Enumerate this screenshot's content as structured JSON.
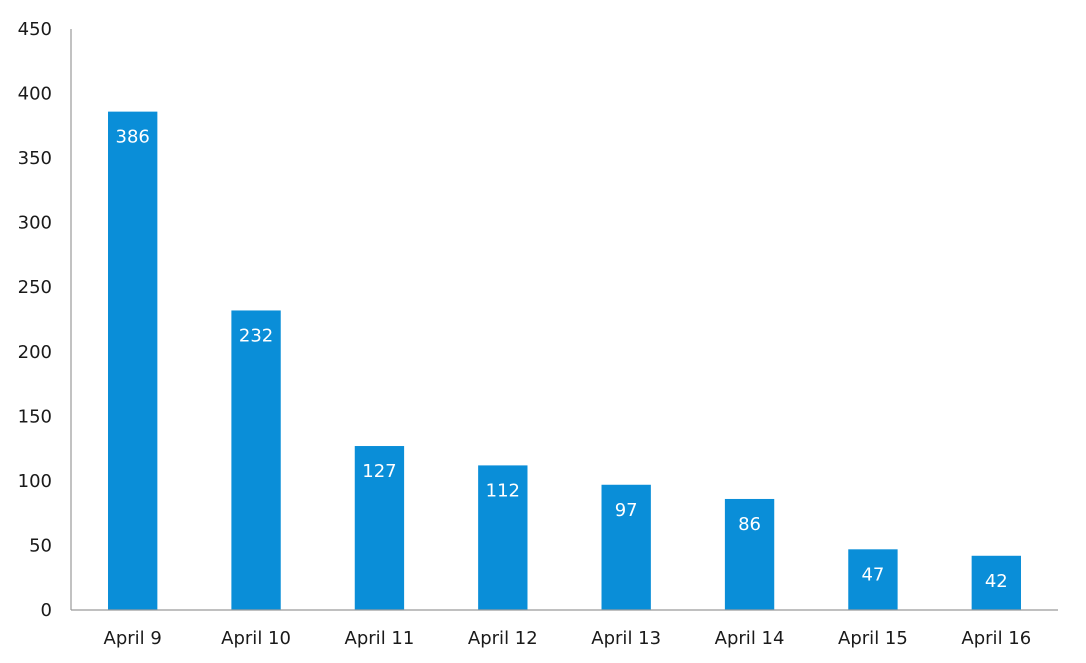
{
  "chart_data": {
    "type": "bar",
    "categories": [
      "April 9",
      "April 10",
      "April 11",
      "April 12",
      "April 13",
      "April 14",
      "April 15",
      "April 16"
    ],
    "values": [
      386,
      232,
      127,
      112,
      97,
      86,
      47,
      42
    ],
    "ylim": [
      0,
      450
    ],
    "yticks": [
      0,
      50,
      100,
      150,
      200,
      250,
      300,
      350,
      400,
      450
    ],
    "grid": false,
    "data_labels": true,
    "bar_color": "#0a8ed8",
    "label_color": "#ffffff"
  }
}
